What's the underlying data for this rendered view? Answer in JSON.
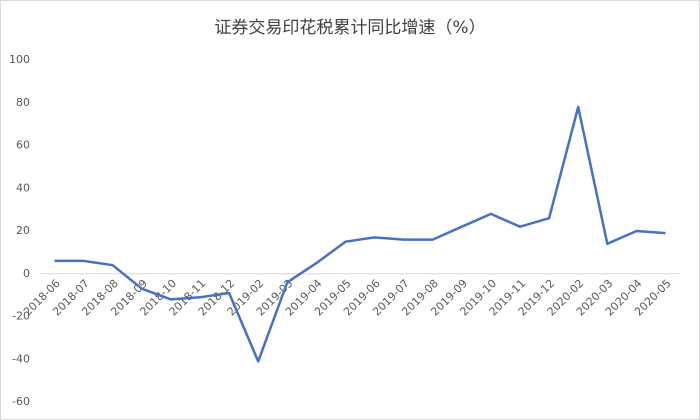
{
  "chart_data": {
    "type": "line",
    "title": "证券交易印花税累计同比增速（%）",
    "categories": [
      "2018-06",
      "2018-07",
      "2018-08",
      "2018-09",
      "2018-10",
      "2018-11",
      "2018-12",
      "2019-02",
      "2019-03",
      "2019-04",
      "2019-05",
      "2019-06",
      "2019-07",
      "2019-08",
      "2019-09",
      "2019-10",
      "2019-11",
      "2019-12",
      "2020-02",
      "2020-03",
      "2020-04",
      "2020-05"
    ],
    "values": [
      6,
      6,
      4,
      -7,
      -12,
      -11,
      -9,
      -41,
      -4,
      5,
      15,
      17,
      16,
      16,
      22,
      28,
      22,
      26,
      78,
      14,
      20,
      19
    ],
    "color": "#4472c4",
    "ylim": [
      -60,
      100
    ],
    "yticks": [
      -60,
      -40,
      -20,
      0,
      20,
      40,
      60,
      80,
      100
    ],
    "grid": false
  }
}
